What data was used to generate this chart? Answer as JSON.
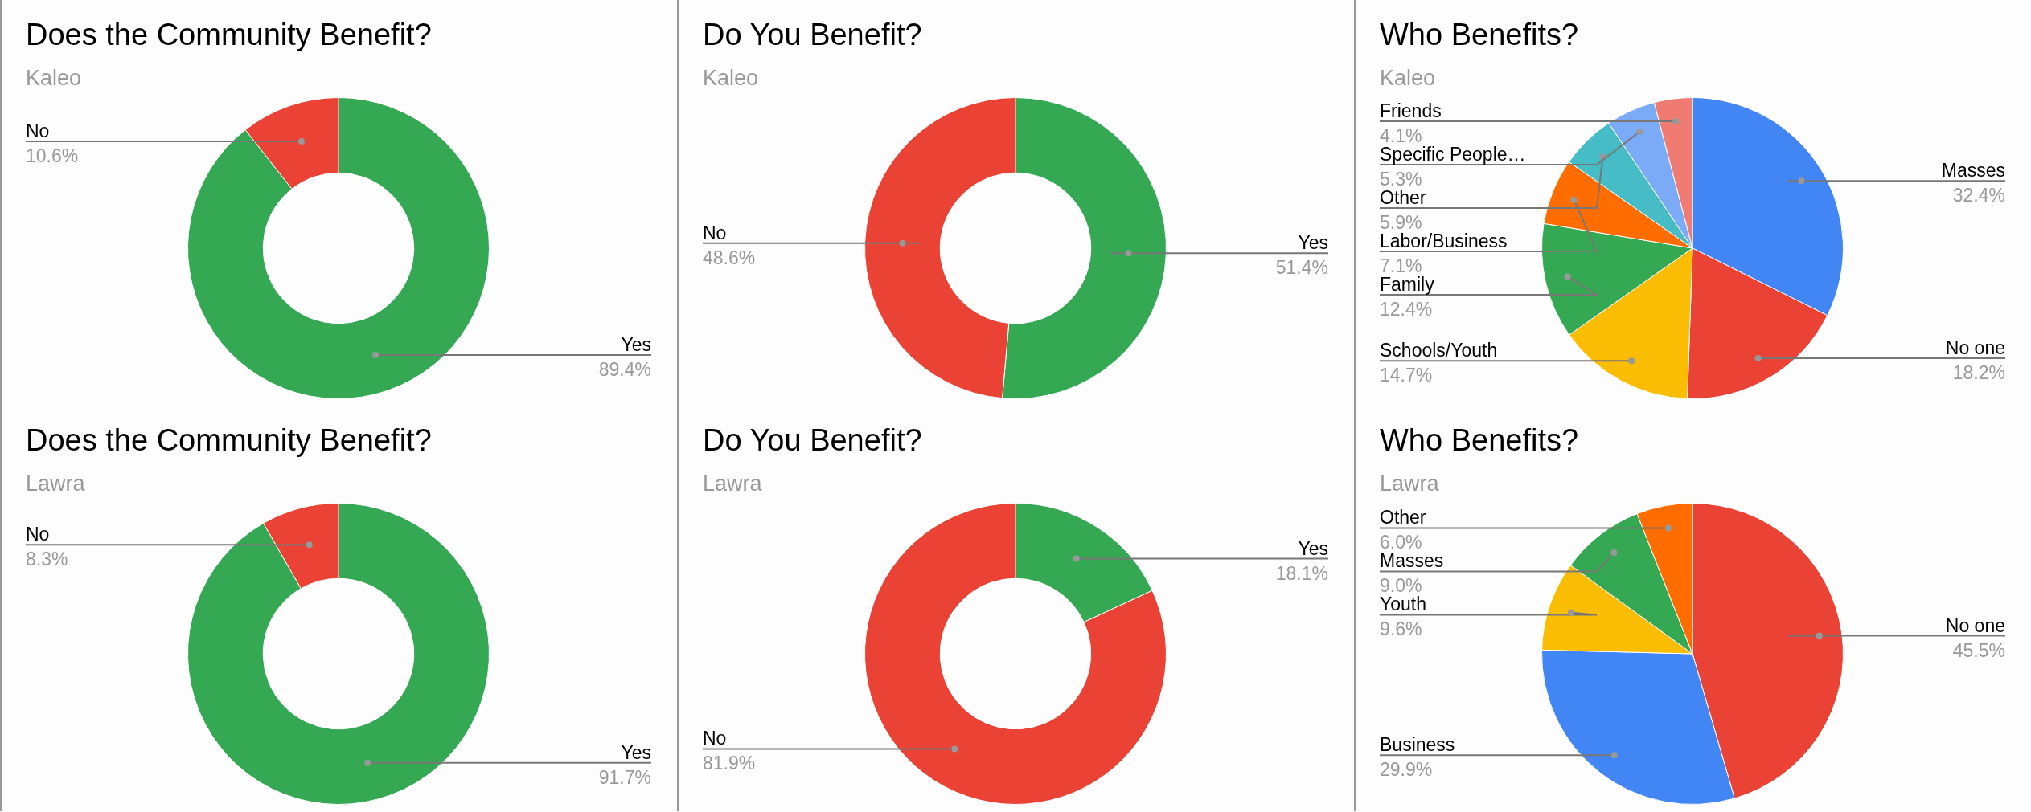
{
  "chart_data": [
    {
      "type": "donut",
      "title": "Does the Community Benefit?",
      "subtitle": "Kaleo",
      "categories": [
        "Yes",
        "No"
      ],
      "values": [
        89.4,
        10.6
      ],
      "colors": [
        "#34a853",
        "#ea4335"
      ],
      "value_labels": [
        "89.4%",
        "10.6%"
      ],
      "legend": false
    },
    {
      "type": "donut",
      "title": "Do You Benefit?",
      "subtitle": "Kaleo",
      "categories": [
        "Yes",
        "No"
      ],
      "values": [
        51.4,
        48.6
      ],
      "colors": [
        "#34a853",
        "#ea4335"
      ],
      "value_labels": [
        "51.4%",
        "48.6%"
      ],
      "legend": false
    },
    {
      "type": "pie",
      "title": "Who Benefits?",
      "subtitle": "Kaleo",
      "categories": [
        "Masses",
        "No one",
        "Schools/Youth",
        "Family",
        "Labor/Business",
        "Other",
        "Specific People…",
        "Friends"
      ],
      "values": [
        32.4,
        18.2,
        14.7,
        12.4,
        7.1,
        5.9,
        5.3,
        4.1
      ],
      "colors": [
        "#4285f4",
        "#ea4335",
        "#fbbc04",
        "#34a853",
        "#ff6d01",
        "#46bdc6",
        "#7baaf7",
        "#f07b72"
      ],
      "value_labels": [
        "32.4%",
        "18.2%",
        "14.7%",
        "12.4%",
        "7.1%",
        "5.9%",
        "5.3%",
        "4.1%"
      ],
      "legend": false
    },
    {
      "type": "donut",
      "title": "Does the Community Benefit?",
      "subtitle": "Lawra",
      "categories": [
        "Yes",
        "No"
      ],
      "values": [
        91.7,
        8.3
      ],
      "colors": [
        "#34a853",
        "#ea4335"
      ],
      "value_labels": [
        "91.7%",
        "8.3%"
      ],
      "legend": false
    },
    {
      "type": "donut",
      "title": "Do You Benefit?",
      "subtitle": "Lawra",
      "categories": [
        "Yes",
        "No"
      ],
      "values": [
        18.1,
        81.9
      ],
      "colors": [
        "#34a853",
        "#ea4335"
      ],
      "value_labels": [
        "18.1%",
        "81.9%"
      ],
      "legend": false
    },
    {
      "type": "pie",
      "title": "Who Benefits?",
      "subtitle": "Lawra",
      "categories": [
        "No one",
        "Business",
        "Youth",
        "Masses",
        "Other"
      ],
      "values": [
        45.5,
        29.9,
        9.6,
        9.0,
        6.0
      ],
      "colors": [
        "#ea4335",
        "#4285f4",
        "#fbbc04",
        "#34a853",
        "#ff6d01"
      ],
      "value_labels": [
        "45.5%",
        "29.9%",
        "9.6%",
        "9.0%",
        "6.0%"
      ],
      "legend": false
    }
  ]
}
